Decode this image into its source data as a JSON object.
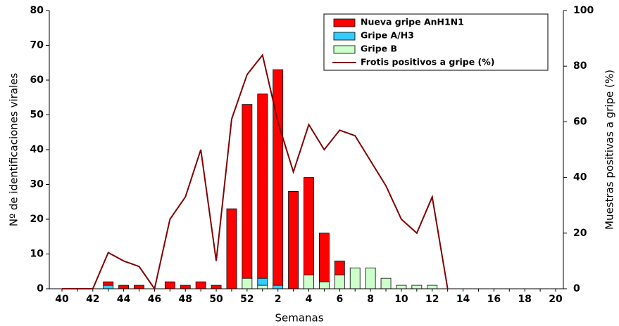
{
  "chart_data": {
    "type": "bar-line",
    "categories": [
      "40",
      null,
      "42",
      null,
      "44",
      null,
      "46",
      null,
      "48",
      null,
      "50",
      null,
      "52",
      null,
      "2",
      null,
      "4",
      null,
      "6",
      null,
      "8",
      null,
      "10",
      null,
      "12",
      null,
      "14",
      null,
      "16",
      null,
      "18",
      null,
      "20"
    ],
    "x_label": "Semanas",
    "y_label": "Nº de identificaciones virales",
    "y2_label": "Muestras positivas a gripe (%)",
    "ylim": [
      0,
      80
    ],
    "yticks": [
      0,
      10,
      20,
      30,
      40,
      50,
      60,
      70,
      80
    ],
    "y2lim": [
      0,
      100
    ],
    "y2ticks": [
      0,
      20,
      40,
      60,
      80,
      100
    ],
    "legend": "top-right",
    "series": [
      {
        "name": "Nueva gripe AnH1N1",
        "type": "bar",
        "color": "#ff0000",
        "values": [
          0,
          0,
          0,
          1,
          1,
          1,
          0,
          2,
          1,
          2,
          1,
          23,
          50,
          53,
          62,
          28,
          28,
          14,
          4,
          0,
          0,
          0,
          0,
          0,
          0,
          0,
          0,
          0,
          0,
          0,
          0,
          0,
          0
        ]
      },
      {
        "name": "Gripe A/H3",
        "type": "bar",
        "color": "#33ccff",
        "values": [
          0,
          0,
          0,
          1,
          0,
          0,
          0,
          0,
          0,
          0,
          0,
          0,
          0,
          2,
          1,
          0,
          0,
          0,
          0,
          0,
          0,
          0,
          0,
          0,
          0,
          0,
          0,
          0,
          0,
          0,
          0,
          0,
          0
        ]
      },
      {
        "name": "Gripe B",
        "type": "bar",
        "color": "#ccffcc",
        "values": [
          0,
          0,
          0,
          0,
          0,
          0,
          0,
          0,
          0,
          0,
          0,
          0,
          3,
          1,
          0,
          0,
          4,
          2,
          4,
          6,
          6,
          3,
          1,
          1,
          1,
          0,
          0,
          0,
          0,
          0,
          0,
          0,
          0
        ]
      },
      {
        "name": "Frotis positivos a gripe (%)",
        "type": "line",
        "axis": "y2",
        "color": "#800000",
        "values": [
          0,
          0,
          0,
          13,
          10,
          8,
          0,
          25,
          33,
          50,
          10,
          61,
          77,
          84,
          60,
          42,
          59,
          50,
          57,
          55,
          46,
          37,
          25,
          20,
          33,
          0,
          null,
          null,
          null,
          null,
          null,
          null,
          null
        ]
      }
    ]
  }
}
